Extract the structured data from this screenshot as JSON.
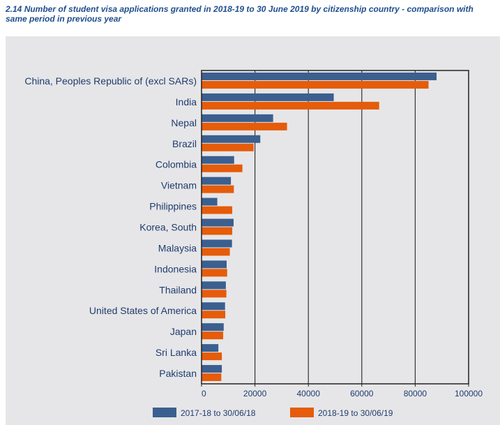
{
  "title": "2.14 Number of student visa applications granted in 2018-19 to 30 June 2019 by citizenship country - comparison with same period in previous year",
  "colors": {
    "series1": "#3b5f8f",
    "series2": "#e55c0a",
    "panel": "#e6e6e8",
    "label": "#1f3c6e"
  },
  "chart_data": {
    "type": "bar",
    "orientation": "horizontal",
    "categories": [
      "China, Peoples Republic of (excl SARs)",
      "India",
      "Nepal",
      "Brazil",
      "Colombia",
      "Vietnam",
      "Philippines",
      "Korea, South",
      "Malaysia",
      "Indonesia",
      "Thailand",
      "United States of America",
      "Japan",
      "Sri Lanka",
      "Pakistan"
    ],
    "series": [
      {
        "name": "2017-18 to 30/06/18",
        "values": [
          88000,
          49500,
          26800,
          22000,
          12200,
          11000,
          5900,
          12000,
          11400,
          9400,
          9100,
          8800,
          8300,
          6300,
          7600
        ]
      },
      {
        "name": "2018-19 to 30/06/19",
        "values": [
          85000,
          66500,
          32000,
          19500,
          15300,
          12100,
          11500,
          11500,
          10600,
          9600,
          9300,
          8900,
          8100,
          7600,
          7400
        ]
      }
    ],
    "xlim": [
      0,
      100000
    ],
    "xticks": [
      "0",
      "20000",
      "40000",
      "60000",
      "80000",
      "100000"
    ],
    "xlabel": "",
    "ylabel": "",
    "grid": true,
    "legend": "bottom"
  }
}
